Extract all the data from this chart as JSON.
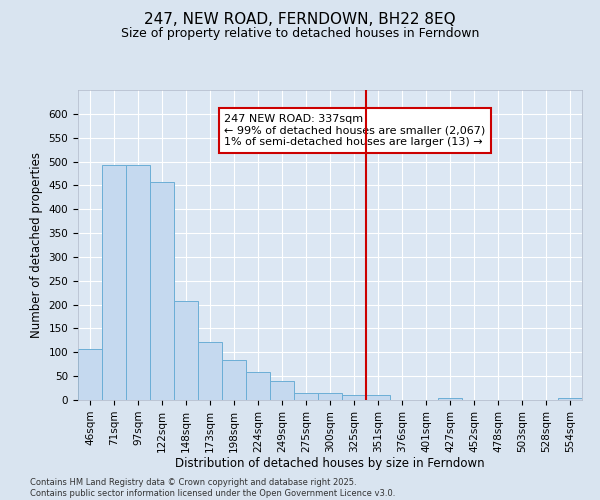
{
  "title": "247, NEW ROAD, FERNDOWN, BH22 8EQ",
  "subtitle": "Size of property relative to detached houses in Ferndown",
  "xlabel": "Distribution of detached houses by size in Ferndown",
  "ylabel": "Number of detached properties",
  "footer": "Contains HM Land Registry data © Crown copyright and database right 2025.\nContains public sector information licensed under the Open Government Licence v3.0.",
  "categories": [
    "46sqm",
    "71sqm",
    "97sqm",
    "122sqm",
    "148sqm",
    "173sqm",
    "198sqm",
    "224sqm",
    "249sqm",
    "275sqm",
    "300sqm",
    "325sqm",
    "351sqm",
    "376sqm",
    "401sqm",
    "427sqm",
    "452sqm",
    "478sqm",
    "503sqm",
    "528sqm",
    "554sqm"
  ],
  "values": [
    106,
    492,
    492,
    458,
    208,
    122,
    83,
    58,
    39,
    15,
    15,
    10,
    10,
    0,
    0,
    5,
    0,
    0,
    0,
    0,
    5
  ],
  "bar_color": "#c5d9ef",
  "bar_edge_color": "#6baed6",
  "vline_color": "#cc0000",
  "vline_pos": 11.5,
  "annotation_text": "247 NEW ROAD: 337sqm\n← 99% of detached houses are smaller (2,067)\n1% of semi-detached houses are larger (13) →",
  "ylim": [
    0,
    650
  ],
  "yticks": [
    0,
    50,
    100,
    150,
    200,
    250,
    300,
    350,
    400,
    450,
    500,
    550,
    600
  ],
  "bg_color": "#d9e4f0",
  "plot_bg_color": "#dce7f3",
  "grid_color": "#ffffff",
  "title_fontsize": 11,
  "subtitle_fontsize": 9,
  "axis_label_fontsize": 8.5,
  "tick_fontsize": 7.5,
  "footer_fontsize": 6,
  "ann_fontsize": 8
}
